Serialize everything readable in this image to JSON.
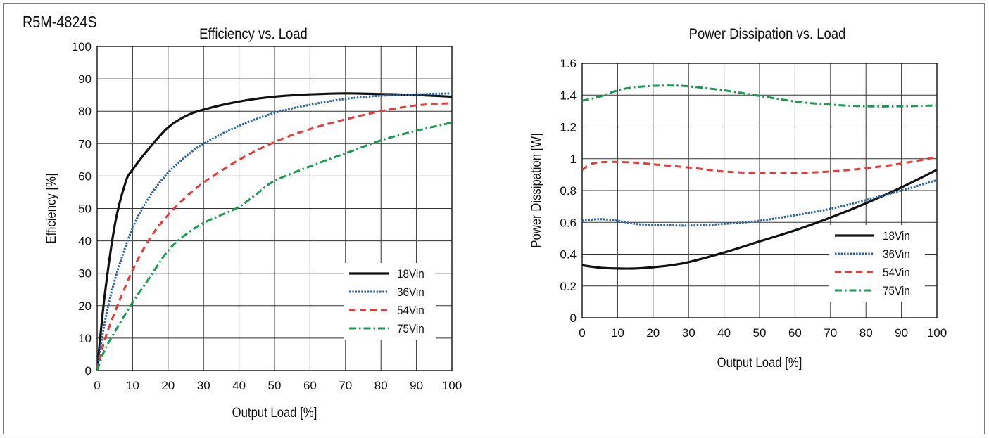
{
  "model_label": "R5M-4824S",
  "chart_data": [
    {
      "type": "line",
      "title": "Efficiency vs. Load",
      "xlabel": "Output Load [%]",
      "ylabel": "Efficiency [%]",
      "xlim": [
        0,
        100
      ],
      "ylim": [
        0,
        100
      ],
      "xticks": [
        0,
        10,
        20,
        30,
        40,
        50,
        60,
        70,
        80,
        90,
        100
      ],
      "yticks": [
        0,
        10,
        20,
        30,
        40,
        50,
        60,
        70,
        80,
        90,
        100
      ],
      "grid": true,
      "legend_position": "bottom-right",
      "series": [
        {
          "name": "18Vin",
          "color": "#111111",
          "style": "solid",
          "x": [
            0,
            2,
            5,
            8,
            10,
            15,
            20,
            25,
            30,
            40,
            50,
            60,
            70,
            80,
            90,
            100
          ],
          "y": [
            0,
            22,
            45,
            58,
            62,
            69,
            75,
            78.5,
            80.5,
            83,
            84.5,
            85.2,
            85.5,
            85.3,
            85,
            84.5
          ]
        },
        {
          "name": "36Vin",
          "color": "#2a62a8",
          "style": "dotted",
          "x": [
            0,
            2,
            5,
            10,
            15,
            20,
            25,
            30,
            40,
            50,
            60,
            70,
            80,
            90,
            100
          ],
          "y": [
            0,
            14,
            28,
            44,
            54,
            61,
            66,
            70,
            75.5,
            79.5,
            82,
            83.8,
            84.8,
            85.2,
            85.5
          ]
        },
        {
          "name": "54Vin",
          "color": "#e83a3a",
          "style": "dashed",
          "x": [
            0,
            2,
            5,
            10,
            15,
            20,
            25,
            30,
            40,
            50,
            60,
            70,
            80,
            90,
            100
          ],
          "y": [
            0,
            9,
            18,
            31,
            41,
            48,
            53.5,
            58,
            65,
            70.5,
            74.5,
            77.5,
            80,
            81.8,
            82.5
          ]
        },
        {
          "name": "75Vin",
          "color": "#1a9a50",
          "style": "dash-dot",
          "x": [
            0,
            2,
            5,
            10,
            15,
            20,
            25,
            30,
            35,
            40,
            45,
            50,
            60,
            70,
            80,
            90,
            100
          ],
          "y": [
            0,
            6,
            12,
            21,
            29,
            37,
            42,
            45.5,
            48,
            50.5,
            54.5,
            58.5,
            63,
            67,
            71,
            74,
            76.5
          ]
        }
      ]
    },
    {
      "type": "line",
      "title": "Power Dissipation vs. Load",
      "xlabel": "Output Load [%]",
      "ylabel": "Power Dissipation [W]",
      "xlim": [
        0,
        100
      ],
      "ylim": [
        0,
        1.6
      ],
      "xticks": [
        0,
        10,
        20,
        30,
        40,
        50,
        60,
        70,
        80,
        90,
        100
      ],
      "yticks": [
        0,
        0.2,
        0.4,
        0.6,
        0.8,
        1,
        1.2,
        1.4,
        1.6
      ],
      "grid": true,
      "legend_position": "bottom-right",
      "series": [
        {
          "name": "18Vin",
          "color": "#111111",
          "style": "solid",
          "x": [
            0,
            5,
            10,
            15,
            20,
            25,
            30,
            40,
            50,
            60,
            70,
            80,
            90,
            100
          ],
          "y": [
            0.33,
            0.315,
            0.31,
            0.31,
            0.318,
            0.33,
            0.35,
            0.41,
            0.48,
            0.55,
            0.63,
            0.72,
            0.82,
            0.93
          ]
        },
        {
          "name": "36Vin",
          "color": "#2a62a8",
          "style": "dotted",
          "x": [
            0,
            5,
            10,
            15,
            20,
            30,
            40,
            50,
            60,
            70,
            80,
            90,
            100
          ],
          "y": [
            0.61,
            0.62,
            0.61,
            0.59,
            0.585,
            0.58,
            0.59,
            0.61,
            0.645,
            0.685,
            0.74,
            0.8,
            0.865
          ]
        },
        {
          "name": "54Vin",
          "color": "#e83a3a",
          "style": "dashed",
          "x": [
            0,
            3,
            8,
            15,
            20,
            30,
            40,
            50,
            60,
            70,
            80,
            90,
            100
          ],
          "y": [
            0.93,
            0.97,
            0.98,
            0.975,
            0.965,
            0.945,
            0.92,
            0.91,
            0.91,
            0.92,
            0.94,
            0.97,
            1.01
          ]
        },
        {
          "name": "75Vin",
          "color": "#1a9a50",
          "style": "dash-dot",
          "x": [
            0,
            5,
            10,
            15,
            20,
            25,
            30,
            40,
            50,
            60,
            70,
            80,
            90,
            100
          ],
          "y": [
            1.365,
            1.39,
            1.43,
            1.45,
            1.458,
            1.46,
            1.455,
            1.43,
            1.395,
            1.36,
            1.34,
            1.33,
            1.33,
            1.335
          ]
        }
      ]
    }
  ]
}
